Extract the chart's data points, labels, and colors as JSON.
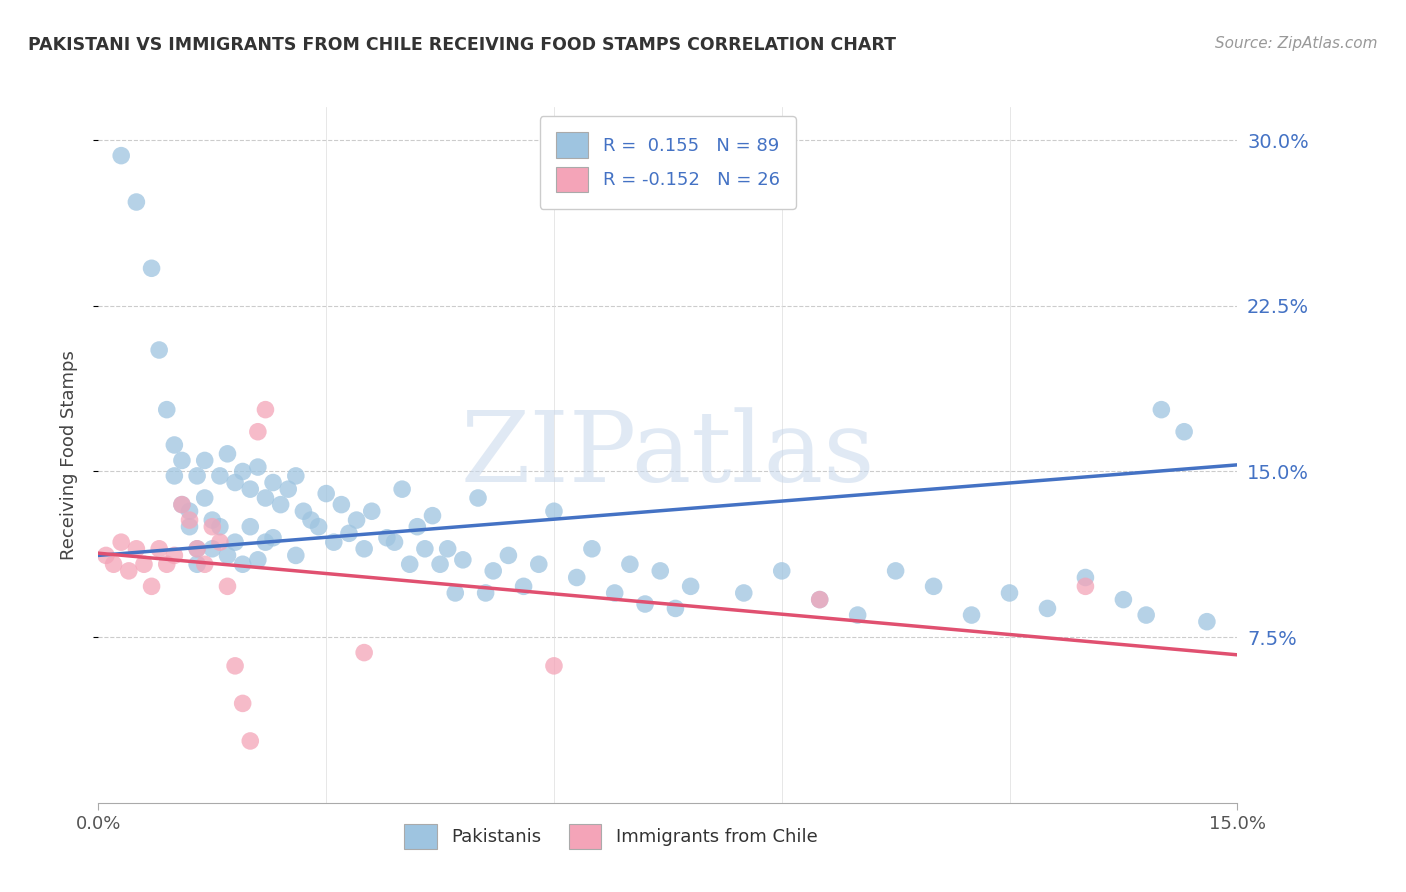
{
  "title": "PAKISTANI VS IMMIGRANTS FROM CHILE RECEIVING FOOD STAMPS CORRELATION CHART",
  "source": "Source: ZipAtlas.com",
  "ylabel": "Receiving Food Stamps",
  "ytick_values": [
    0.075,
    0.15,
    0.225,
    0.3
  ],
  "ytick_labels": [
    "7.5%",
    "15.0%",
    "22.5%",
    "30.0%"
  ],
  "xlim": [
    0.0,
    0.15
  ],
  "ylim": [
    0.0,
    0.315
  ],
  "blue_scatter_color": "#9ec4e0",
  "pink_scatter_color": "#f4a4b8",
  "blue_line_color": "#4472c4",
  "pink_line_color": "#e05070",
  "pakistanis_label": "Pakistanis",
  "chile_label": "Immigrants from Chile",
  "watermark_text": "ZIPatlas",
  "legend_line1": "R =  0.155   N = 89",
  "legend_line2": "R = -0.152   N = 26",
  "pak_line_x0": 0.0,
  "pak_line_y0": 0.112,
  "pak_line_x1": 0.15,
  "pak_line_y1": 0.153,
  "chile_line_x0": 0.0,
  "chile_line_y0": 0.113,
  "chile_line_x1": 0.15,
  "chile_line_y1": 0.067,
  "pak_x": [
    0.003,
    0.005,
    0.007,
    0.008,
    0.009,
    0.01,
    0.01,
    0.011,
    0.011,
    0.012,
    0.012,
    0.013,
    0.013,
    0.013,
    0.014,
    0.014,
    0.015,
    0.015,
    0.016,
    0.016,
    0.017,
    0.017,
    0.018,
    0.018,
    0.019,
    0.019,
    0.02,
    0.02,
    0.021,
    0.021,
    0.022,
    0.022,
    0.023,
    0.023,
    0.024,
    0.025,
    0.026,
    0.026,
    0.027,
    0.028,
    0.029,
    0.03,
    0.031,
    0.032,
    0.033,
    0.034,
    0.035,
    0.036,
    0.038,
    0.039,
    0.04,
    0.041,
    0.042,
    0.043,
    0.044,
    0.045,
    0.046,
    0.047,
    0.048,
    0.05,
    0.051,
    0.052,
    0.054,
    0.056,
    0.058,
    0.06,
    0.063,
    0.065,
    0.068,
    0.07,
    0.072,
    0.074,
    0.076,
    0.078,
    0.085,
    0.09,
    0.095,
    0.1,
    0.105,
    0.11,
    0.115,
    0.12,
    0.125,
    0.13,
    0.135,
    0.138,
    0.14,
    0.143,
    0.146
  ],
  "pak_y": [
    0.293,
    0.272,
    0.242,
    0.205,
    0.178,
    0.162,
    0.148,
    0.155,
    0.135,
    0.132,
    0.125,
    0.148,
    0.115,
    0.108,
    0.155,
    0.138,
    0.128,
    0.115,
    0.148,
    0.125,
    0.158,
    0.112,
    0.145,
    0.118,
    0.15,
    0.108,
    0.142,
    0.125,
    0.152,
    0.11,
    0.138,
    0.118,
    0.145,
    0.12,
    0.135,
    0.142,
    0.148,
    0.112,
    0.132,
    0.128,
    0.125,
    0.14,
    0.118,
    0.135,
    0.122,
    0.128,
    0.115,
    0.132,
    0.12,
    0.118,
    0.142,
    0.108,
    0.125,
    0.115,
    0.13,
    0.108,
    0.115,
    0.095,
    0.11,
    0.138,
    0.095,
    0.105,
    0.112,
    0.098,
    0.108,
    0.132,
    0.102,
    0.115,
    0.095,
    0.108,
    0.09,
    0.105,
    0.088,
    0.098,
    0.095,
    0.105,
    0.092,
    0.085,
    0.105,
    0.098,
    0.085,
    0.095,
    0.088,
    0.102,
    0.092,
    0.085,
    0.178,
    0.168,
    0.082
  ],
  "chile_x": [
    0.001,
    0.002,
    0.003,
    0.004,
    0.005,
    0.006,
    0.007,
    0.008,
    0.009,
    0.01,
    0.011,
    0.012,
    0.013,
    0.014,
    0.015,
    0.016,
    0.017,
    0.018,
    0.019,
    0.02,
    0.021,
    0.022,
    0.035,
    0.06,
    0.095,
    0.13
  ],
  "chile_y": [
    0.112,
    0.108,
    0.118,
    0.105,
    0.115,
    0.108,
    0.098,
    0.115,
    0.108,
    0.112,
    0.135,
    0.128,
    0.115,
    0.108,
    0.125,
    0.118,
    0.098,
    0.062,
    0.045,
    0.028,
    0.168,
    0.178,
    0.068,
    0.062,
    0.092,
    0.098
  ]
}
